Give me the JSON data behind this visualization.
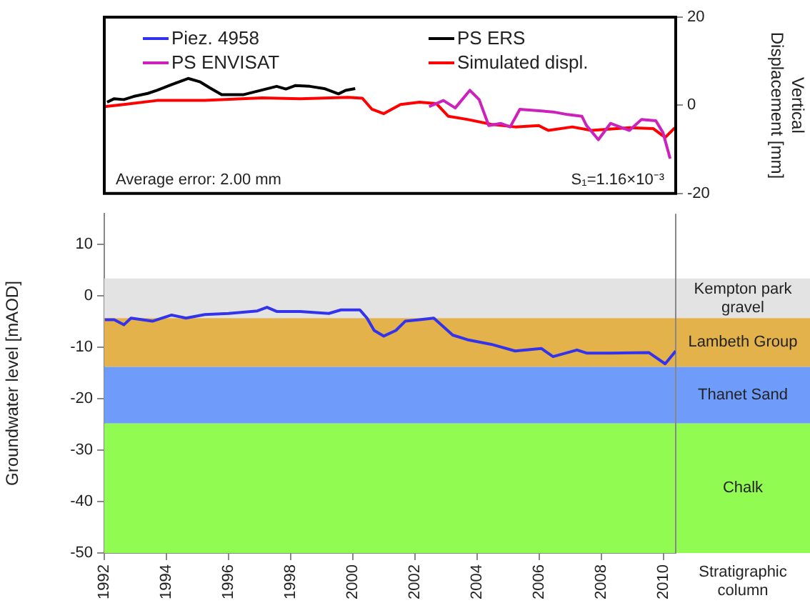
{
  "chart_data": [
    {
      "type": "line",
      "xlim": [
        1992,
        2010.4
      ],
      "ylim": [
        -20,
        20
      ],
      "yticks": [
        -20,
        0,
        20
      ],
      "ylabel": "Vertical Displacement [mm]",
      "tick_labels": "y",
      "legend": "top",
      "annotations": [
        "Average error: 2.00 mm",
        "S₁=1.16×10⁻³"
      ],
      "series": [
        {
          "name": "PS ENVISAT",
          "color": "#cc22bb",
          "x": [
            2002.46,
            2002.92,
            2003.3,
            2003.77,
            2004.07,
            2004.38,
            2004.76,
            2005.07,
            2005.38,
            2005.76,
            2006.45,
            2006.92,
            2007.38,
            2007.53,
            2007.91,
            2008.3,
            2008.6,
            2008.91,
            2009.3,
            2009.76,
            2009.99,
            2010.22
          ],
          "values": [
            -0.3,
            1.1,
            -0.6,
            3.4,
            1.3,
            -4.6,
            -4.1,
            -4.9,
            -0.9,
            -1.1,
            -1.5,
            -2.1,
            -2.5,
            -4.6,
            -7.8,
            -4.1,
            -4.9,
            -5.7,
            -3.2,
            -3.5,
            -6.2,
            -12.1
          ]
        },
        {
          "name": "PS ERS",
          "color": "#000000",
          "x": [
            1992.09,
            1992.32,
            1992.63,
            1992.94,
            1993.4,
            1993.7,
            1994.17,
            1994.7,
            1995.09,
            1995.39,
            1995.78,
            1996.47,
            1996.93,
            1997.55,
            1997.85,
            1998.16,
            1998.62,
            1999.08,
            1999.54,
            1999.77,
            2000.08
          ],
          "values": [
            0.7,
            1.5,
            1.3,
            2.0,
            2.7,
            3.4,
            4.7,
            6.1,
            5.3,
            4.0,
            2.4,
            2.4,
            3.2,
            4.3,
            3.7,
            4.5,
            4.3,
            3.8,
            2.6,
            3.4,
            3.8
          ]
        },
        {
          "name": "Simulated displ.",
          "color": "#ff0000",
          "x": [
            1992.0,
            1992.63,
            1993.7,
            1995.24,
            1997.08,
            1998.31,
            1999.85,
            2000.31,
            2000.62,
            2001.0,
            2001.54,
            2002.15,
            2002.69,
            2003.08,
            2003.69,
            2004.46,
            2005.23,
            2005.99,
            2006.3,
            2007.07,
            2007.68,
            2008.91,
            2009.68,
            2010.06,
            2010.37
          ],
          "values": [
            -0.3,
            0.2,
            1.1,
            1.1,
            1.7,
            1.5,
            1.8,
            1.6,
            -0.9,
            -1.9,
            0.2,
            0.7,
            0.4,
            -2.5,
            -3.2,
            -4.3,
            -4.9,
            -4.6,
            -5.7,
            -4.9,
            -5.7,
            -5.1,
            -5.3,
            -7.3,
            -5.1
          ]
        }
      ]
    },
    {
      "type": "line",
      "xlim": [
        1992,
        2010.4
      ],
      "xticks": [
        1992,
        1994,
        1996,
        1998,
        2000,
        2002,
        2004,
        2006,
        2008,
        2010
      ],
      "ylim": [
        -50,
        16
      ],
      "yticks": [
        10,
        0,
        -10,
        -20,
        -30,
        -40,
        -50
      ],
      "ylabel": "Groundwater level [mAOD]",
      "legend": "top",
      "annotations": [
        "Stratigraphic column"
      ],
      "bands": [
        {
          "axis": "y",
          "from": 3.4,
          "to": -4.3,
          "label": "Kempton park gravel",
          "color": "#e3e3e3"
        },
        {
          "axis": "y",
          "from": -4.3,
          "to": -13.8,
          "label": "Lambeth Group",
          "color": "#e3b24a"
        },
        {
          "axis": "y",
          "from": -13.8,
          "to": -24.8,
          "label": "Thanet Sand",
          "color": "#6f9cfb"
        },
        {
          "axis": "y",
          "from": -24.8,
          "to": -50,
          "label": "Chalk",
          "color": "#91fb52"
        }
      ],
      "series": [
        {
          "name": "Piez. 4958",
          "color": "#3333ee",
          "x": [
            1992.02,
            1992.32,
            1992.63,
            1992.86,
            1993.55,
            1994.17,
            1994.63,
            1995.24,
            1996.0,
            1996.93,
            1997.24,
            1997.55,
            1998.31,
            1999.23,
            1999.62,
            2000.23,
            2000.46,
            2000.69,
            2001.0,
            2001.39,
            2001.69,
            2002.15,
            2002.61,
            2003.22,
            2003.69,
            2004.46,
            2005.23,
            2006.07,
            2006.45,
            2007.22,
            2007.53,
            2008.3,
            2009.53,
            2010.06,
            2010.4
          ],
          "values": [
            -4.6,
            -4.6,
            -5.6,
            -4.3,
            -4.9,
            -3.7,
            -4.3,
            -3.6,
            -3.4,
            -2.9,
            -2.2,
            -3.0,
            -3.0,
            -3.4,
            -2.7,
            -2.7,
            -4.3,
            -6.7,
            -7.8,
            -6.7,
            -4.9,
            -4.6,
            -4.3,
            -7.6,
            -8.5,
            -9.4,
            -10.7,
            -10.2,
            -11.8,
            -10.5,
            -11.1,
            -11.1,
            -11.0,
            -13.2,
            -10.7
          ]
        }
      ]
    }
  ]
}
